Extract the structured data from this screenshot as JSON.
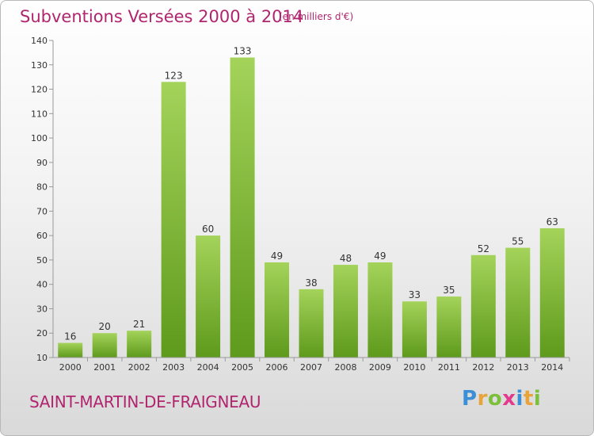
{
  "header": {
    "title": "Subventions Versées 2000 à 2014",
    "subtitle": "(en milliers d'€)"
  },
  "footer": {
    "commune": "SAINT-MARTIN-DE-FRAIGNEAU",
    "logo": [
      {
        "ch": "P",
        "color": "#3a8fd6"
      },
      {
        "ch": "r",
        "color": "#e8a33a"
      },
      {
        "ch": "o",
        "color": "#7cbf3c"
      },
      {
        "ch": "x",
        "color": "#e23a8c"
      },
      {
        "ch": "i",
        "color": "#3a8fd6"
      },
      {
        "ch": "t",
        "color": "#e8a33a"
      },
      {
        "ch": "i",
        "color": "#7cbf3c"
      }
    ]
  },
  "chart_data": {
    "type": "bar",
    "title": "Subventions Versées 2000 à 2014",
    "subtitle": "(en milliers d'€)",
    "categories": [
      "2000",
      "2001",
      "2002",
      "2003",
      "2004",
      "2005",
      "2006",
      "2007",
      "2008",
      "2009",
      "2010",
      "2011",
      "2012",
      "2013",
      "2014"
    ],
    "values": [
      16,
      20,
      21,
      123,
      60,
      133,
      49,
      38,
      48,
      49,
      33,
      35,
      52,
      55,
      63
    ],
    "ylim": [
      10,
      140
    ],
    "yticks": [
      10,
      20,
      30,
      40,
      50,
      60,
      70,
      80,
      90,
      100,
      110,
      120,
      130,
      140
    ],
    "grid": false,
    "bar_color_top": "#a4d35a",
    "bar_color_bottom": "#5e9a1c",
    "axis_color": "#999999",
    "text_color": "#b0256e"
  }
}
